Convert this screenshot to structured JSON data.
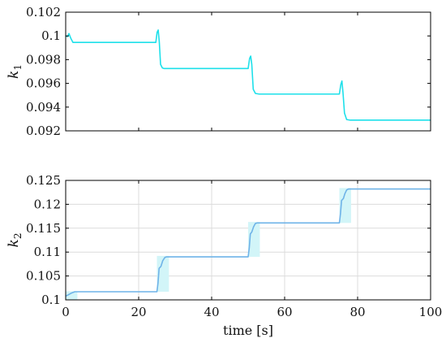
{
  "chart_data": [
    {
      "type": "line",
      "ylabel": "k",
      "ylabel_sub": "1",
      "xlabel": "",
      "xlim": [
        0,
        100
      ],
      "ylim": [
        0.092,
        0.102
      ],
      "yticks": [
        0.092,
        0.094,
        0.096,
        0.098,
        0.1,
        0.102
      ],
      "ytick_labels": [
        "0.092",
        "0.094",
        "0.096",
        "0.098",
        "0.1",
        "0.102"
      ],
      "grid": false,
      "line_color": "#1ee0ea",
      "band_color": "#c7f5f8",
      "series": [
        {
          "x": [
            0,
            0.5,
            0.9,
            1.4,
            2.0,
            2.6,
            3,
            24.7,
            25.05,
            25.35,
            25.65,
            26.0,
            26.5,
            27,
            28,
            50.0,
            50.4,
            50.7,
            51.0,
            51.4,
            52.0,
            53,
            75.0,
            75.4,
            75.7,
            76.0,
            76.4,
            77.0,
            78,
            100
          ],
          "y": [
            0.1,
            0.09995,
            0.1002,
            0.0998,
            0.09945,
            0.09945,
            0.09945,
            0.09945,
            0.1003,
            0.1005,
            0.0995,
            0.0976,
            0.0973,
            0.09725,
            0.09725,
            0.09725,
            0.0981,
            0.0983,
            0.0976,
            0.0955,
            0.09515,
            0.0951,
            0.0951,
            0.0959,
            0.0962,
            0.0952,
            0.0935,
            0.09295,
            0.0929,
            0.0929
          ]
        }
      ],
      "bands": []
    },
    {
      "type": "line",
      "ylabel": "k",
      "ylabel_sub": "2",
      "xlabel": "time [s]",
      "xlim": [
        0,
        100
      ],
      "ylim": [
        0.1,
        0.125
      ],
      "xticks": [
        0,
        20,
        40,
        60,
        80,
        100
      ],
      "xtick_labels": [
        "0",
        "20",
        "40",
        "60",
        "80",
        "100"
      ],
      "yticks": [
        0.1,
        0.105,
        0.11,
        0.115,
        0.12,
        0.125
      ],
      "ytick_labels": [
        "0.1",
        "0.105",
        "0.11",
        "0.115",
        "0.12",
        "0.125"
      ],
      "grid": true,
      "line_color": "#6fb3e8",
      "band_color": "#d2f5f8",
      "series": [
        {
          "x": [
            0,
            0.6,
            1.5,
            2.5,
            3.2,
            25.0,
            25.3,
            25.6,
            26.1,
            26.6,
            27.2,
            27.7,
            28.3,
            50.0,
            50.3,
            50.6,
            51.0,
            51.5,
            52.0,
            52.5,
            53.2,
            75.0,
            75.3,
            75.6,
            76.1,
            76.5,
            77.0,
            77.5,
            78.2,
            100
          ],
          "y": [
            0.1008,
            0.101,
            0.1014,
            0.1017,
            0.1017,
            0.1017,
            0.1035,
            0.1066,
            0.107,
            0.1082,
            0.1089,
            0.109,
            0.109,
            0.109,
            0.1108,
            0.1138,
            0.1142,
            0.1153,
            0.116,
            0.1161,
            0.1161,
            0.1161,
            0.118,
            0.1208,
            0.1212,
            0.1222,
            0.123,
            0.1232,
            0.1232,
            0.1232
          ]
        }
      ],
      "bands": [
        {
          "x0": 0,
          "x1": 3.2,
          "y0": 0.1,
          "y1": 0.1018
        },
        {
          "x0": 25.0,
          "x1": 28.3,
          "y0": 0.1017,
          "y1": 0.1092
        },
        {
          "x0": 50.0,
          "x1": 53.2,
          "y0": 0.109,
          "y1": 0.1163
        },
        {
          "x0": 75.0,
          "x1": 78.2,
          "y0": 0.1161,
          "y1": 0.1234
        }
      ]
    }
  ]
}
